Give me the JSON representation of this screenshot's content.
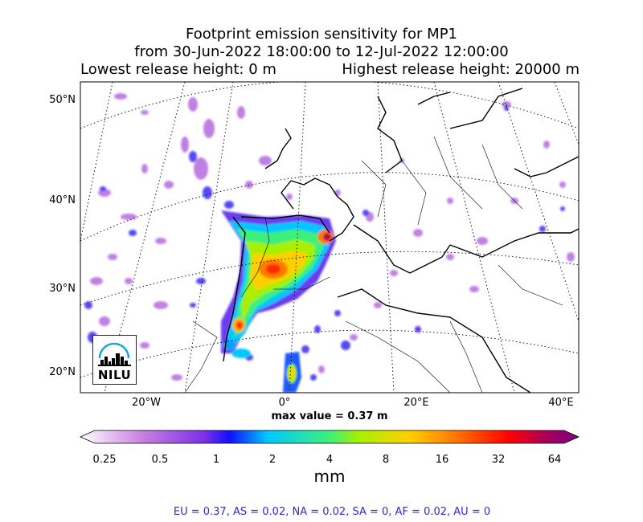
{
  "title": {
    "line1": "Footprint emission sensitivity for MP1",
    "line2": "from 30-Jun-2022 18:00:00 to 12-Jul-2022 12:00:00",
    "lowest": "Lowest release height: 0 m",
    "highest": "Highest release height: 20000 m"
  },
  "map": {
    "lat_labels": [
      "50°N",
      "40°N",
      "30°N",
      "20°N"
    ],
    "lon_labels": [
      "20°W",
      "0°",
      "20°E",
      "40°E"
    ],
    "lat_range": [
      18,
      52
    ],
    "lon_range": [
      -30,
      45
    ],
    "max_value": "max value = 0.37 m",
    "logo_text": "NILU"
  },
  "colorbar": {
    "tick_labels": [
      "0.25",
      "0.5",
      "1",
      "2",
      "4",
      "8",
      "16",
      "32",
      "64"
    ],
    "unit": "mm",
    "colors": [
      "#ffffff",
      "#c87fe0",
      "#7b2fe8",
      "#1010ff",
      "#00c8ff",
      "#3cf07a",
      "#a8f000",
      "#ffd000",
      "#ff7a00",
      "#ff0000",
      "#a00060",
      "#800080"
    ]
  },
  "totals": "EU = 0.37,  AS = 0.02,  NA = 0.02,  SA = 0,  AF = 0.02,  AU = 0"
}
